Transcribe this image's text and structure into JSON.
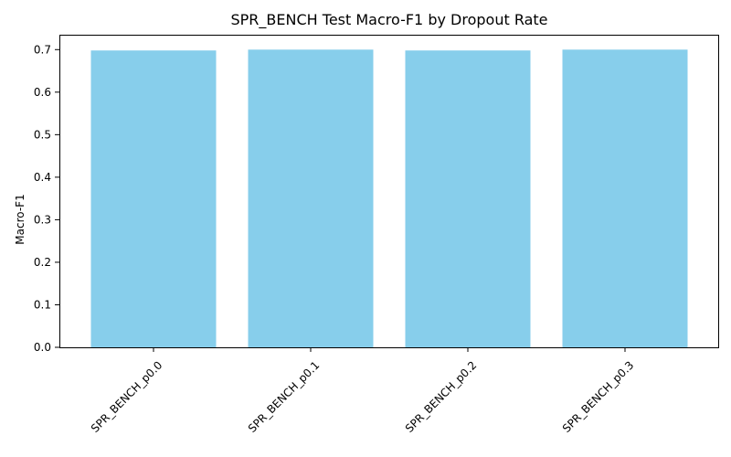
{
  "chart_data": {
    "type": "bar",
    "title": "SPR_BENCH Test Macro-F1 by Dropout Rate",
    "xlabel": "",
    "ylabel": "Macro-F1",
    "categories": [
      "SPR_BENCH_p0.0",
      "SPR_BENCH_p0.1",
      "SPR_BENCH_p0.2",
      "SPR_BENCH_p0.3"
    ],
    "values": [
      0.698,
      0.7,
      0.698,
      0.7
    ],
    "ylim": [
      0,
      0.735
    ],
    "yticks": [
      "0.0",
      "0.1",
      "0.2",
      "0.3",
      "0.4",
      "0.5",
      "0.6",
      "0.7"
    ],
    "bar_color": "#87ceeb",
    "grid": false,
    "xtick_rotation": 45
  }
}
